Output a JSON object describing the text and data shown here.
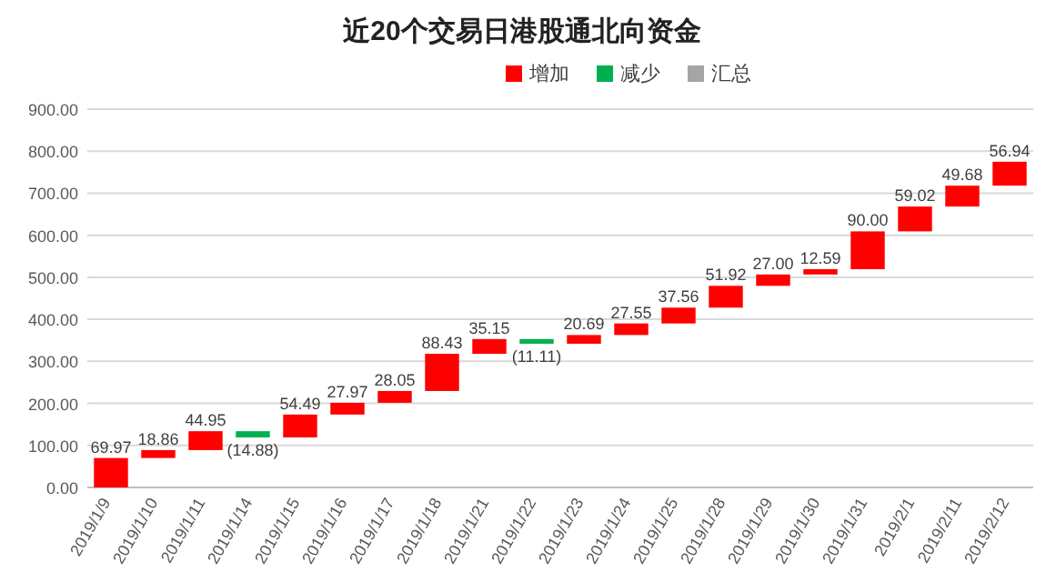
{
  "chart_data": {
    "type": "bar",
    "title": "近20个交易日港股通北向资金",
    "categories": [
      "2019/1/9",
      "2019/1/10",
      "2019/1/11",
      "2019/1/14",
      "2019/1/15",
      "2019/1/16",
      "2019/1/17",
      "2019/1/18",
      "2019/1/21",
      "2019/1/22",
      "2019/1/23",
      "2019/1/24",
      "2019/1/25",
      "2019/1/28",
      "2019/1/29",
      "2019/1/30",
      "2019/1/31",
      "2019/2/1",
      "2019/2/11",
      "2019/2/12"
    ],
    "series": [
      {
        "name": "增加",
        "color": "#ff0000",
        "base": [
          0,
          69.97,
          88.83,
          null,
          118.9,
          173.39,
          201.36,
          229.41,
          317.84,
          null,
          341.88,
          362.57,
          390.12,
          427.68,
          479.6,
          506.6,
          519.19,
          609.19,
          668.21,
          717.89
        ],
        "values": [
          69.97,
          18.86,
          44.95,
          null,
          54.49,
          27.97,
          28.05,
          88.43,
          35.15,
          null,
          20.69,
          27.55,
          37.56,
          51.92,
          27.0,
          12.59,
          90.0,
          59.02,
          49.68,
          56.94
        ],
        "value_labels": [
          "69.97",
          "18.86",
          "44.95",
          null,
          "54.49",
          "27.97",
          "28.05",
          "88.43",
          "35.15",
          null,
          "20.69",
          "27.55",
          "37.56",
          "51.92",
          "27.00",
          "12.59",
          "90.00",
          "59.02",
          "49.68",
          "56.94"
        ]
      },
      {
        "name": "减少",
        "color": "#00b050",
        "base": [
          null,
          null,
          null,
          133.78,
          null,
          null,
          null,
          null,
          null,
          352.99,
          null,
          null,
          null,
          null,
          null,
          null,
          null,
          null,
          null,
          null
        ],
        "values": [
          null,
          null,
          null,
          -14.88,
          null,
          null,
          null,
          null,
          null,
          -11.11,
          null,
          null,
          null,
          null,
          null,
          null,
          null,
          null,
          null,
          null
        ],
        "value_labels": [
          null,
          null,
          null,
          "(14.88)",
          null,
          null,
          null,
          null,
          null,
          "(11.11)",
          null,
          null,
          null,
          null,
          null,
          null,
          null,
          null,
          null,
          null
        ]
      },
      {
        "name": "汇总",
        "color": "#a5a5a5",
        "values": [
          null,
          null,
          null,
          null,
          null,
          null,
          null,
          null,
          null,
          null,
          null,
          null,
          null,
          null,
          null,
          null,
          null,
          null,
          null,
          null
        ]
      }
    ],
    "ylim": [
      0,
      900
    ],
    "yticks": [
      {
        "value": 0,
        "label": "0.00"
      },
      {
        "value": 100,
        "label": "100.00"
      },
      {
        "value": 200,
        "label": "200.00"
      },
      {
        "value": 300,
        "label": "300.00"
      },
      {
        "value": 400,
        "label": "400.00"
      },
      {
        "value": 500,
        "label": "500.00"
      },
      {
        "value": 600,
        "label": "600.00"
      },
      {
        "value": 700,
        "label": "700.00"
      },
      {
        "value": 800,
        "label": "800.00"
      },
      {
        "value": 900,
        "label": "900.00"
      }
    ],
    "grid": "y",
    "legend": "top"
  }
}
